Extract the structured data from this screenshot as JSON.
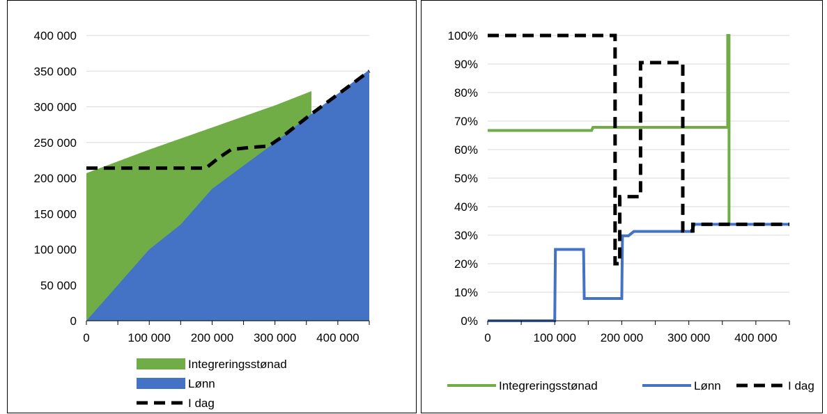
{
  "chart_data": [
    {
      "type": "area",
      "xlim": [
        0,
        450000
      ],
      "ylim": [
        0,
        400000
      ],
      "x_ticks": [
        0,
        100000,
        200000,
        300000,
        400000
      ],
      "x_tick_labels": [
        "0",
        "100 000",
        "200 000",
        "300 000",
        "400 000"
      ],
      "y_ticks": [
        0,
        50000,
        100000,
        150000,
        200000,
        250000,
        300000,
        350000,
        400000
      ],
      "y_tick_labels": [
        "0",
        "50 000",
        "100 000",
        "150 000",
        "200 000",
        "250 000",
        "300 000",
        "350 000",
        "400 000"
      ],
      "grid": true,
      "legend_position": "bottom",
      "series": [
        {
          "name": "Integreringsstønad",
          "kind": "area",
          "color": "#70ad47",
          "x": [
            0,
            100000,
            200000,
            300000,
            358000,
            358000
          ],
          "y": [
            207000,
            240000,
            271000,
            302000,
            322000,
            300000
          ]
        },
        {
          "name": "Lønn",
          "kind": "area",
          "color": "#4472c4",
          "x": [
            0,
            100000,
            150000,
            200000,
            300000,
            358000,
            450000
          ],
          "y": [
            0,
            100000,
            135000,
            185000,
            250000,
            290000,
            352000
          ]
        },
        {
          "name": "I dag",
          "kind": "line",
          "style": "dashed",
          "color": "#000000",
          "x": [
            0,
            190000,
            210000,
            230000,
            260000,
            290000,
            310000,
            358000,
            450000
          ],
          "y": [
            214000,
            214000,
            228000,
            240000,
            243000,
            245000,
            257000,
            290000,
            350000
          ]
        }
      ]
    },
    {
      "type": "line",
      "xlim": [
        0,
        450000
      ],
      "ylim": [
        0,
        1.0
      ],
      "x_ticks": [
        0,
        100000,
        200000,
        300000,
        400000
      ],
      "x_tick_labels": [
        "0",
        "100 000",
        "200 000",
        "300 000",
        "400 000"
      ],
      "y_ticks": [
        0,
        0.1,
        0.2,
        0.3,
        0.4,
        0.5,
        0.6,
        0.7,
        0.8,
        0.9,
        1.0
      ],
      "y_tick_labels": [
        "0%",
        "10%",
        "20%",
        "30%",
        "40%",
        "50%",
        "60%",
        "70%",
        "80%",
        "90%",
        "100%"
      ],
      "grid": true,
      "legend_position": "bottom",
      "series": [
        {
          "name": "Integreringsstønad",
          "color": "#70ad47",
          "style": "solid",
          "x": [
            0,
            155000,
            157000,
            358000,
            358000,
            360000,
            360000
          ],
          "y": [
            0.667,
            0.667,
            0.678,
            0.678,
            1.0,
            1.0,
            0.338
          ]
        },
        {
          "name": "Lønn",
          "color": "#4472c4",
          "style": "solid",
          "x": [
            0,
            100000,
            101000,
            143000,
            144000,
            200000,
            201000,
            210000,
            218000,
            305000,
            308000,
            450000
          ],
          "y": [
            0,
            0,
            0.25,
            0.25,
            0.078,
            0.078,
            0.298,
            0.298,
            0.313,
            0.313,
            0.338,
            0.338
          ]
        },
        {
          "name": "I dag",
          "color": "#000000",
          "style": "dashed",
          "x": [
            0,
            190000,
            190000,
            197000,
            197000,
            228000,
            228000,
            291000,
            291000,
            306000,
            306000,
            450000
          ],
          "y": [
            1.0,
            1.0,
            0.2,
            0.2,
            0.435,
            0.435,
            0.905,
            0.905,
            0.315,
            0.315,
            0.338,
            0.338
          ]
        }
      ]
    }
  ]
}
